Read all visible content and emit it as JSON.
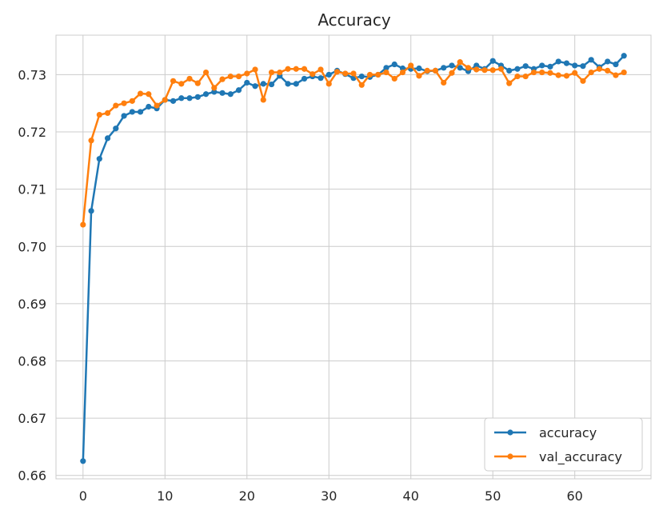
{
  "chart_data": {
    "type": "line",
    "title": "Accuracy",
    "xlabel": "",
    "ylabel": "",
    "xlim": [
      -3.3,
      69.3
    ],
    "ylim": [
      0.6594,
      0.7369
    ],
    "xticks": [
      0,
      10,
      20,
      30,
      40,
      50,
      60
    ],
    "yticks": [
      0.66,
      0.67,
      0.68,
      0.69,
      0.7,
      0.71,
      0.72,
      0.73
    ],
    "ytick_labels": [
      "0.66",
      "0.67",
      "0.68",
      "0.69",
      "0.70",
      "0.71",
      "0.72",
      "0.73"
    ],
    "grid": true,
    "legend_position": "lower-right",
    "x": [
      0,
      1,
      2,
      3,
      4,
      5,
      6,
      7,
      8,
      9,
      10,
      11,
      12,
      13,
      14,
      15,
      16,
      17,
      18,
      19,
      20,
      21,
      22,
      23,
      24,
      25,
      26,
      27,
      28,
      29,
      30,
      31,
      32,
      33,
      34,
      35,
      36,
      37,
      38,
      39,
      40,
      41,
      42,
      43,
      44,
      45,
      46,
      47,
      48,
      49,
      50,
      51,
      52,
      53,
      54,
      55,
      56,
      57,
      58,
      59,
      60,
      61,
      62,
      63,
      64,
      65,
      66
    ],
    "series": [
      {
        "name": "accuracy",
        "color": "#1f77b4",
        "values": [
          0.6625,
          0.7062,
          0.7153,
          0.7189,
          0.7206,
          0.7228,
          0.7235,
          0.7235,
          0.7244,
          0.7241,
          0.7256,
          0.7254,
          0.7259,
          0.7259,
          0.7261,
          0.7266,
          0.727,
          0.7268,
          0.7266,
          0.7273,
          0.7286,
          0.728,
          0.7284,
          0.7283,
          0.7298,
          0.7284,
          0.7284,
          0.7293,
          0.7297,
          0.7294,
          0.73,
          0.7307,
          0.7301,
          0.7294,
          0.7297,
          0.7296,
          0.73,
          0.7312,
          0.7318,
          0.7311,
          0.731,
          0.7311,
          0.7306,
          0.7307,
          0.7312,
          0.7316,
          0.7312,
          0.7306,
          0.7316,
          0.731,
          0.7324,
          0.7316,
          0.7307,
          0.731,
          0.7315,
          0.731,
          0.7316,
          0.7314,
          0.7323,
          0.732,
          0.7316,
          0.7315,
          0.7326,
          0.7313,
          0.7323,
          0.7318,
          0.7333
        ]
      },
      {
        "name": "val_accuracy",
        "color": "#ff7f0e",
        "values": [
          0.7038,
          0.7185,
          0.723,
          0.7233,
          0.7246,
          0.725,
          0.7254,
          0.7267,
          0.7266,
          0.7246,
          0.7256,
          0.7289,
          0.7284,
          0.7293,
          0.7285,
          0.7304,
          0.7277,
          0.7292,
          0.7297,
          0.7297,
          0.7302,
          0.7309,
          0.7256,
          0.7304,
          0.7304,
          0.731,
          0.731,
          0.731,
          0.7301,
          0.7309,
          0.7284,
          0.7305,
          0.7302,
          0.7302,
          0.7282,
          0.73,
          0.73,
          0.7304,
          0.7293,
          0.7304,
          0.7316,
          0.7298,
          0.7307,
          0.7307,
          0.7286,
          0.7303,
          0.7322,
          0.7312,
          0.7309,
          0.7308,
          0.7308,
          0.731,
          0.7285,
          0.7297,
          0.7297,
          0.7304,
          0.7304,
          0.7303,
          0.7299,
          0.7298,
          0.7303,
          0.7289,
          0.7304,
          0.731,
          0.7307,
          0.7299,
          0.7304
        ]
      }
    ]
  }
}
